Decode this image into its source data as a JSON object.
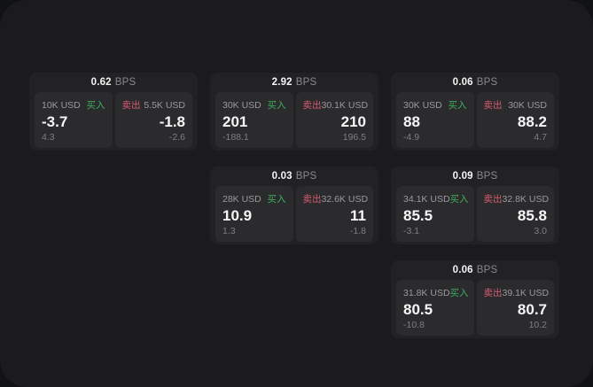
{
  "labels": {
    "bps_suffix": "BPS",
    "buy": "买入",
    "sell": "卖出"
  },
  "colors": {
    "page_outer_bg": "#111214",
    "panel_bg": "#1b1b1d",
    "card_bg": "#222225",
    "tile_bg": "#2b2b2e",
    "buy_green": "#3fae5c",
    "sell_red": "#d85b70",
    "text_primary": "#f7f7f8",
    "text_muted": "#9a9a9e"
  },
  "board": {
    "columns": [
      {
        "cards": [
          {
            "bps": "0.62",
            "buy": {
              "amount": "10K USD",
              "price": "-3.7",
              "change": "4.3"
            },
            "sell": {
              "amount": "5.5K USD",
              "price": "-1.8",
              "change": "-2.6"
            }
          }
        ]
      },
      {
        "cards": [
          {
            "bps": "2.92",
            "buy": {
              "amount": "30K USD",
              "price": "201",
              "change": "-188.1"
            },
            "sell": {
              "amount": "30.1K USD",
              "price": "210",
              "change": "196.5"
            }
          },
          {
            "bps": "0.03",
            "buy": {
              "amount": "28K USD",
              "price": "10.9",
              "change": "1.3"
            },
            "sell": {
              "amount": "32.6K USD",
              "price": "11",
              "change": "-1.8"
            }
          }
        ]
      },
      {
        "cards": [
          {
            "bps": "0.06",
            "buy": {
              "amount": "30K USD",
              "price": "88",
              "change": "-4.9"
            },
            "sell": {
              "amount": "30K USD",
              "price": "88.2",
              "change": "4.7"
            }
          },
          {
            "bps": "0.09",
            "buy": {
              "amount": "34.1K USD",
              "price": "85.5",
              "change": "-3.1"
            },
            "sell": {
              "amount": "32.8K USD",
              "price": "85.8",
              "change": "3.0"
            }
          },
          {
            "bps": "0.06",
            "buy": {
              "amount": "31.8K USD",
              "price": "80.5",
              "change": "-10.8"
            },
            "sell": {
              "amount": "39.1K USD",
              "price": "80.7",
              "change": "10.2"
            }
          }
        ]
      }
    ]
  }
}
